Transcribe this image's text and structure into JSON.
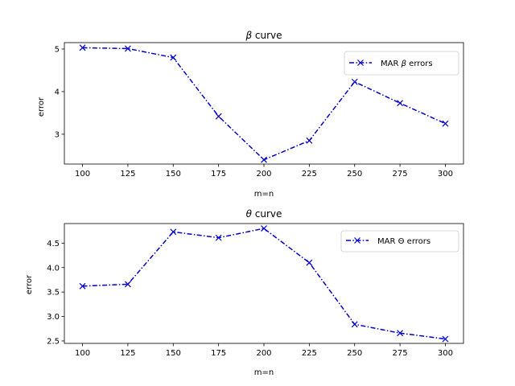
{
  "chart_data": [
    {
      "type": "line",
      "title_symbol": "β",
      "title_text": " curve",
      "xlabel": "m=n",
      "ylabel": "error",
      "x": [
        100,
        125,
        150,
        175,
        200,
        225,
        250,
        275,
        300
      ],
      "xticks": [
        100,
        125,
        150,
        175,
        200,
        225,
        250,
        275,
        300
      ],
      "xlim": [
        90,
        310
      ],
      "yticks": [
        3,
        4,
        5
      ],
      "ylim": [
        2.3,
        5.15
      ],
      "grid": false,
      "legend_position": "upper right",
      "series": [
        {
          "name": "MAR β errors",
          "legend_prefix": "MAR ",
          "legend_symbol": "β",
          "legend_suffix": " errors",
          "values": [
            5.03,
            5.01,
            4.8,
            3.42,
            2.4,
            2.85,
            4.23,
            3.73,
            3.25
          ],
          "color": "#0000cc",
          "linestyle": "dashdot",
          "marker": "x"
        }
      ]
    },
    {
      "type": "line",
      "title_symbol": "θ",
      "title_text": " curve",
      "xlabel": "m=n",
      "ylabel": "error",
      "x": [
        100,
        125,
        150,
        175,
        200,
        225,
        250,
        275,
        300
      ],
      "xticks": [
        100,
        125,
        150,
        175,
        200,
        225,
        250,
        275,
        300
      ],
      "xlim": [
        90,
        310
      ],
      "yticks": [
        "2.5",
        "3.0",
        "3.5",
        "4.0",
        "4.5"
      ],
      "ylim": [
        2.45,
        4.9
      ],
      "grid": false,
      "legend_position": "upper right",
      "series": [
        {
          "name": "MAR Θ errors",
          "legend_prefix": "MAR ",
          "legend_symbol": "Θ",
          "legend_suffix": " errors",
          "values": [
            3.62,
            3.66,
            4.73,
            4.61,
            4.8,
            4.1,
            2.84,
            2.66,
            2.54
          ],
          "color": "#0000cc",
          "linestyle": "dashdot",
          "marker": "x"
        }
      ]
    }
  ]
}
